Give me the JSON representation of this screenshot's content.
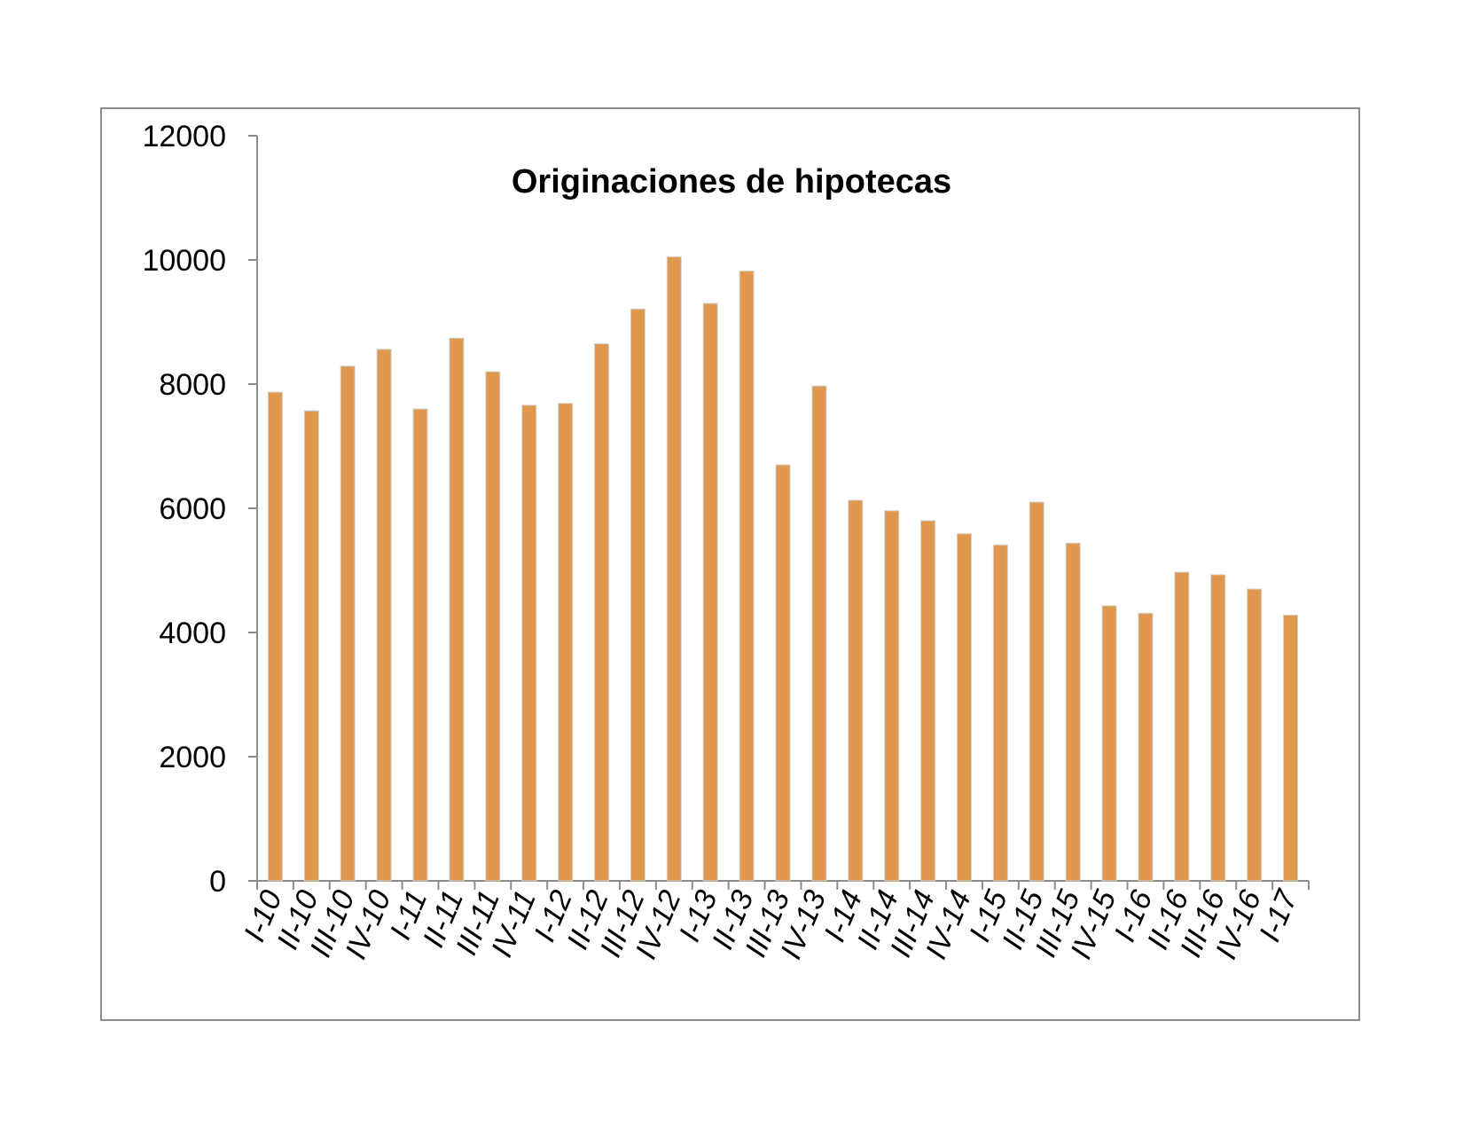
{
  "chart_data": {
    "type": "bar",
    "title": "Originaciones de hipotecas",
    "xlabel": "",
    "ylabel": "",
    "ylim": [
      0,
      12000
    ],
    "yticks": [
      0,
      2000,
      4000,
      6000,
      8000,
      10000,
      12000
    ],
    "grid": false,
    "legend": "none",
    "bar_color": "#E0984E",
    "categories": [
      "I-10",
      "II-10",
      "III-10",
      "IV-10",
      "I-11",
      "II-11",
      "III-11",
      "IV-11",
      "I-12",
      "II-12",
      "III-12",
      "IV-12",
      "I-13",
      "II-13",
      "III-13",
      "IV-13",
      "I-14",
      "II-14",
      "III-14",
      "IV-14",
      "I-15",
      "II-15",
      "III-15",
      "IV-15",
      "I-16",
      "II-16",
      "III-16",
      "IV-16",
      "I-17"
    ],
    "values": [
      7870,
      7570,
      8290,
      8560,
      7600,
      8740,
      8200,
      7660,
      7690,
      8650,
      9210,
      10050,
      9300,
      9820,
      6700,
      7970,
      6130,
      5960,
      5800,
      5590,
      5410,
      6100,
      5440,
      4430,
      4310,
      4970,
      4930,
      4700,
      4280
    ]
  }
}
